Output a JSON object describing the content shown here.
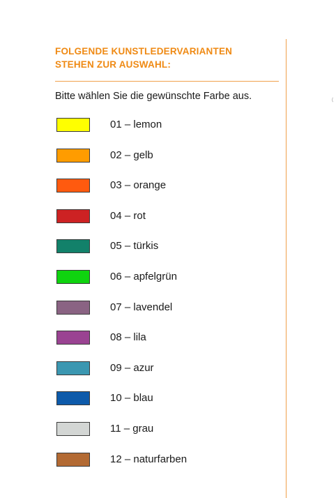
{
  "heading": {
    "line1": "FOLGENDE KUNSTLEDERVARIANTEN",
    "line2": "STEHEN ZUR AUSWAHL:"
  },
  "intro": "Bitte wählen Sie die gewünschte Farbe aus.",
  "colors": {
    "accent": "#ef8a14"
  },
  "variants": [
    {
      "label": "01 – lemon",
      "swatch": "#ffff00"
    },
    {
      "label": "02 – gelb",
      "swatch": "#ff9c00"
    },
    {
      "label": "03 – orange",
      "swatch": "#ff5a0f"
    },
    {
      "label": "04 – rot",
      "swatch": "#cd2223"
    },
    {
      "label": "05 – türkis",
      "swatch": "#12816a"
    },
    {
      "label": "06 – apfelgrün",
      "swatch": "#0fd30f"
    },
    {
      "label": "07 – lavendel",
      "swatch": "#8a6383"
    },
    {
      "label": "08 – lila",
      "swatch": "#9a4392"
    },
    {
      "label": "09 – azur",
      "swatch": "#3b97b1"
    },
    {
      "label": "10 – blau",
      "swatch": "#0d5aaa"
    },
    {
      "label": "11 – grau",
      "swatch": "#d3d6d4"
    },
    {
      "label": "12 – naturfarben",
      "swatch": "#b36a33"
    }
  ]
}
